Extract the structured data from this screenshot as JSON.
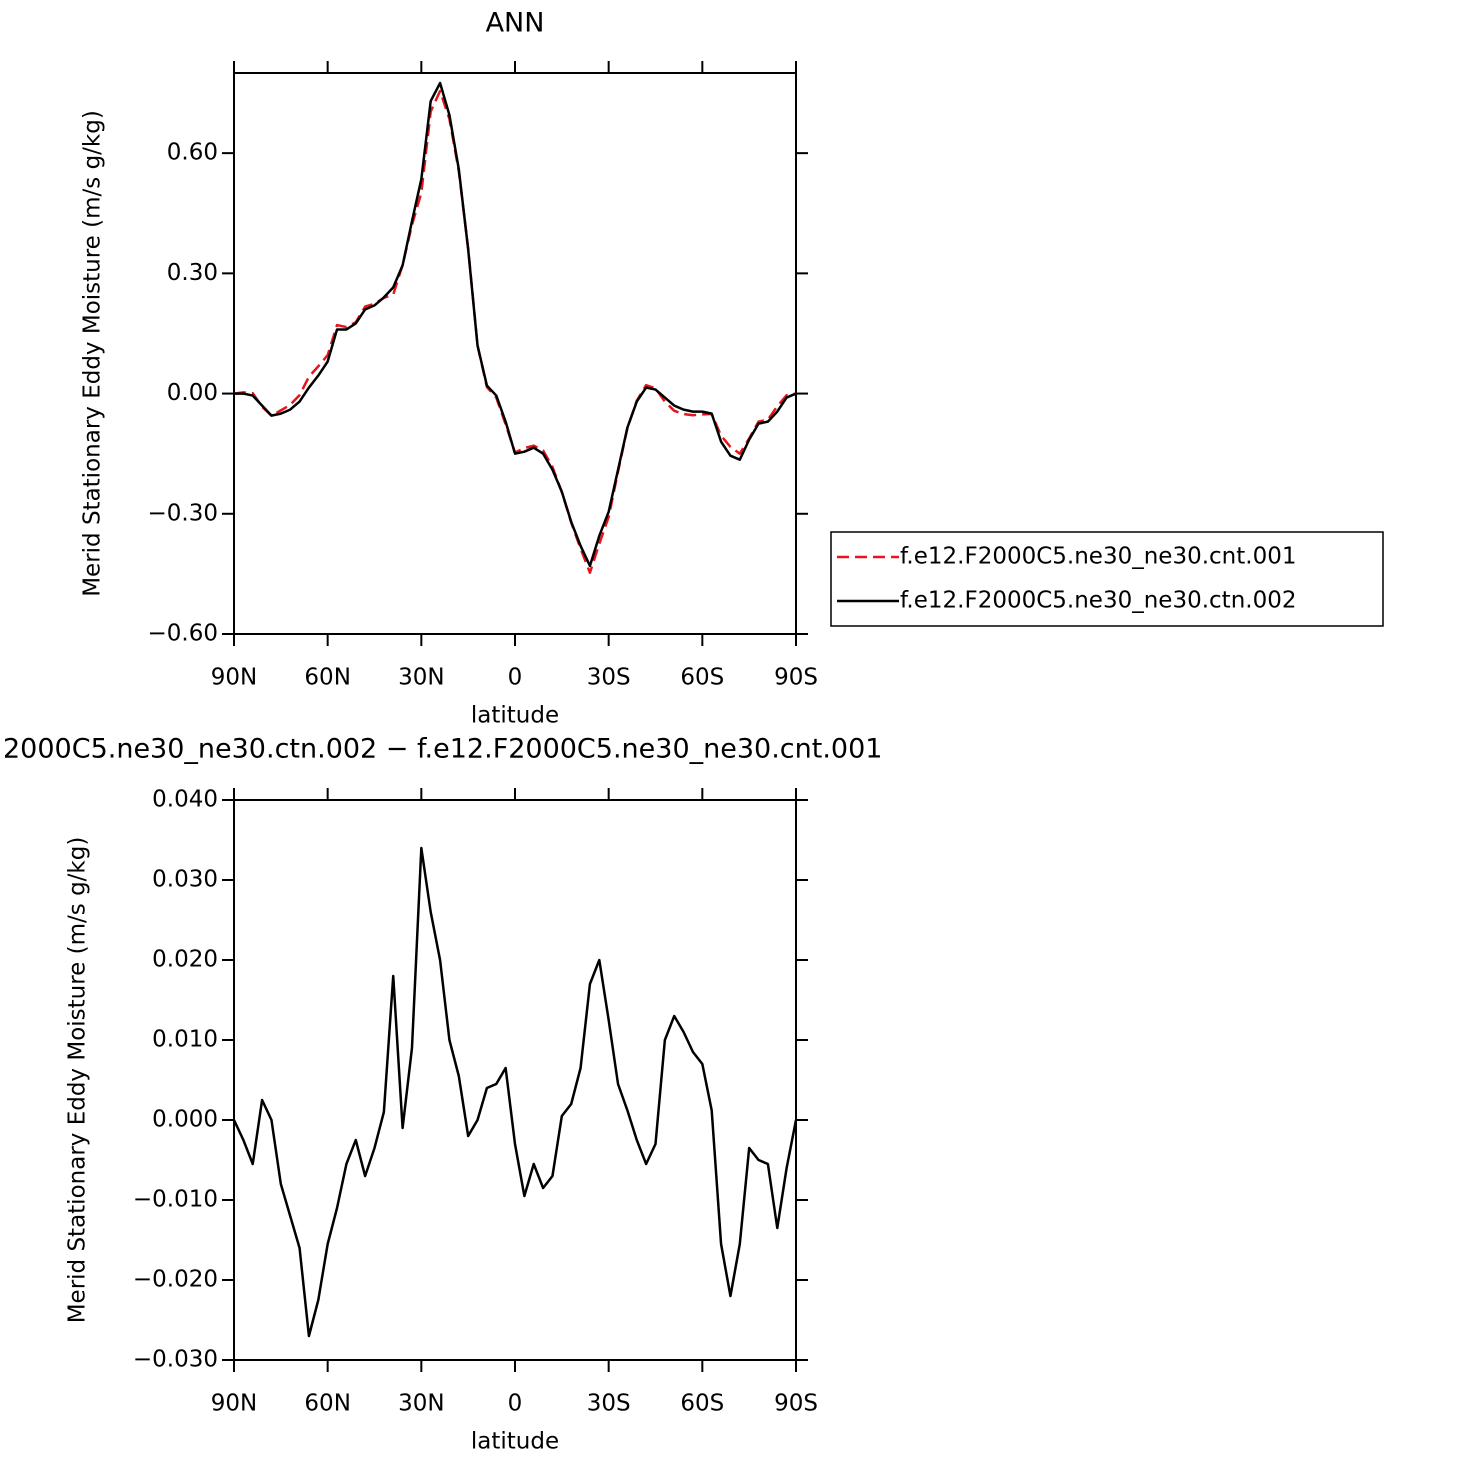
{
  "chart_data": [
    {
      "type": "line",
      "title": "ANN",
      "xlabel": "latitude",
      "ylabel": "Merid Stationary Eddy Moisture (m/s g/kg)",
      "x": [
        90,
        87,
        84,
        81,
        78,
        75,
        72,
        69,
        66,
        63,
        60,
        57,
        54,
        51,
        48,
        45,
        42,
        39,
        36,
        33,
        30,
        27,
        24,
        21,
        18,
        15,
        12,
        9,
        6,
        3,
        0,
        -3,
        -6,
        -9,
        -12,
        -15,
        -18,
        -21,
        -24,
        -27,
        -30,
        -33,
        -36,
        -39,
        -42,
        -45,
        -48,
        -51,
        -54,
        -57,
        -60,
        -63,
        -66,
        -69,
        -72,
        -75,
        -78,
        -81,
        -84,
        -87,
        -90
      ],
      "xlim": [
        90,
        -90
      ],
      "xticks": [
        {
          "value": 90,
          "label": "90N"
        },
        {
          "value": 60,
          "label": "60N"
        },
        {
          "value": 30,
          "label": "30N"
        },
        0,
        {
          "value": -30,
          "label": "30S"
        },
        {
          "value": -60,
          "label": "60S"
        },
        {
          "value": -90,
          "label": "90S"
        }
      ],
      "ylim": [
        -0.6,
        0.8
      ],
      "yticks": [
        {
          "value": 0.6,
          "label": "0.60"
        },
        {
          "value": 0.3,
          "label": "0.30"
        },
        {
          "value": 0,
          "label": "0.00"
        },
        {
          "value": -0.3,
          "label": "−0.30"
        },
        {
          "value": -0.6,
          "label": "−0.60"
        }
      ],
      "legend": "right",
      "series": [
        {
          "name": "f.e12.F2000C5.ne30_ne30.cnt.001",
          "color": "#e8141b",
          "linestyle": "dashed",
          "values": [
            0,
            0.003,
            0.001,
            -0.033,
            -0.055,
            -0.042,
            -0.028,
            -0.004,
            0.042,
            0.068,
            0.096,
            0.171,
            0.166,
            0.178,
            0.217,
            0.224,
            0.239,
            0.247,
            0.321,
            0.421,
            0.501,
            0.704,
            0.755,
            0.685,
            0.555,
            0.362,
            0.12,
            0.016,
            -0.01,
            -0.077,
            -0.147,
            -0.136,
            -0.13,
            -0.142,
            -0.183,
            -0.246,
            -0.322,
            -0.387,
            -0.447,
            -0.375,
            -0.308,
            -0.195,
            -0.086,
            -0.018,
            0.021,
            0.013,
            -0.02,
            -0.043,
            -0.051,
            -0.054,
            -0.052,
            -0.051,
            -0.105,
            -0.133,
            -0.15,
            -0.112,
            -0.07,
            -0.065,
            -0.032,
            -0.004,
            0
          ]
        },
        {
          "name": "f.e12.F2000C5.ne30_ne30.ctn.002",
          "color": "#000000",
          "linestyle": "solid",
          "values": [
            0,
            0,
            -0.005,
            -0.03,
            -0.055,
            -0.05,
            -0.04,
            -0.02,
            0.015,
            0.045,
            0.08,
            0.16,
            0.16,
            0.175,
            0.21,
            0.22,
            0.24,
            0.265,
            0.32,
            0.43,
            0.535,
            0.73,
            0.775,
            0.695,
            0.56,
            0.36,
            0.12,
            0.02,
            -0.005,
            -0.07,
            -0.15,
            -0.145,
            -0.135,
            -0.15,
            -0.19,
            -0.245,
            -0.32,
            -0.38,
            -0.43,
            -0.355,
            -0.295,
            -0.19,
            -0.085,
            -0.02,
            0.015,
            0.01,
            -0.01,
            -0.03,
            -0.04,
            -0.045,
            -0.045,
            -0.05,
            -0.12,
            -0.155,
            -0.165,
            -0.115,
            -0.075,
            -0.07,
            -0.045,
            -0.01,
            0
          ]
        }
      ]
    },
    {
      "type": "line",
      "title": "2000C5.ne30_ne30.ctn.002 − f.e12.F2000C5.ne30_ne30.cnt.001",
      "xlabel": "latitude",
      "ylabel": "Merid Stationary Eddy Moisture (m/s g/kg)",
      "x": [
        90,
        87,
        84,
        81,
        78,
        75,
        72,
        69,
        66,
        63,
        60,
        57,
        54,
        51,
        48,
        45,
        42,
        39,
        36,
        33,
        30,
        27,
        24,
        21,
        18,
        15,
        12,
        9,
        6,
        3,
        0,
        -3,
        -6,
        -9,
        -12,
        -15,
        -18,
        -21,
        -24,
        -27,
        -30,
        -33,
        -36,
        -39,
        -42,
        -45,
        -48,
        -51,
        -54,
        -57,
        -60,
        -63,
        -66,
        -69,
        -72,
        -75,
        -78,
        -81,
        -84,
        -87,
        -90
      ],
      "xlim": [
        90,
        -90
      ],
      "xticks": [
        {
          "value": 90,
          "label": "90N"
        },
        {
          "value": 60,
          "label": "60N"
        },
        {
          "value": 30,
          "label": "30N"
        },
        0,
        {
          "value": -30,
          "label": "30S"
        },
        {
          "value": -60,
          "label": "60S"
        },
        {
          "value": -90,
          "label": "90S"
        }
      ],
      "ylim": [
        -0.03,
        0.04
      ],
      "yticks": [
        {
          "value": 0.04,
          "label": "0.040"
        },
        {
          "value": 0.03,
          "label": "0.030"
        },
        {
          "value": 0.02,
          "label": "0.020"
        },
        {
          "value": 0.01,
          "label": "0.010"
        },
        {
          "value": 0,
          "label": "0.000"
        },
        {
          "value": -0.01,
          "label": "−0.010"
        },
        {
          "value": -0.02,
          "label": "−0.020"
        },
        {
          "value": -0.03,
          "label": "−0.030"
        }
      ],
      "color": "#000000",
      "values": [
        0,
        -0.0025,
        -0.0055,
        0.0025,
        0,
        -0.008,
        -0.012,
        -0.016,
        -0.027,
        -0.0225,
        -0.0155,
        -0.011,
        -0.0055,
        -0.0025,
        -0.007,
        -0.0035,
        0.001,
        0.018,
        -0.001,
        0.009,
        0.034,
        0.026,
        0.02,
        0.01,
        0.0055,
        -0.002,
        0,
        0.004,
        0.0045,
        0.0065,
        -0.003,
        -0.0095,
        -0.0055,
        -0.0085,
        -0.007,
        0.0005,
        0.002,
        0.0065,
        0.017,
        0.02,
        0.0125,
        0.0045,
        0.0012,
        -0.0025,
        -0.0055,
        -0.003,
        0.01,
        0.013,
        0.011,
        0.0085,
        0.007,
        0.0012,
        -0.0155,
        -0.022,
        -0.0155,
        -0.0035,
        -0.005,
        -0.0055,
        -0.0135,
        -0.006,
        0
      ]
    }
  ]
}
